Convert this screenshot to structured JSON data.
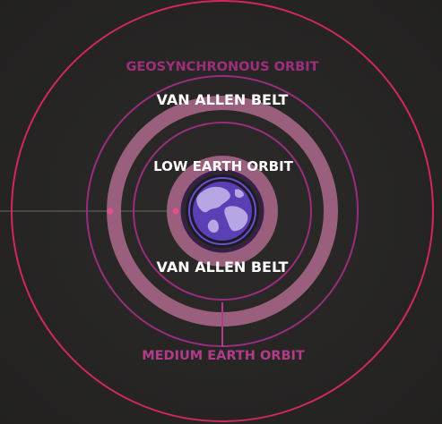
{
  "labels": {
    "geosynchronous": "GEOSYNCHRONOUS ORBIT",
    "van_allen_outer": "VAN ALLEN BELT",
    "low_earth": "LOW EARTH ORBIT",
    "van_allen_inner": "VAN ALLEN BELT",
    "medium_earth": "MEDIUM EARTH ORBIT"
  },
  "colors": {
    "background": "#272625",
    "geo_orbit": "#d1275f",
    "medium_orbit": "#9a2d7e",
    "belt": "#9a5f7c",
    "earth_ocean": "#5b3fb5",
    "earth_land": "#b6a7e4",
    "earth_ring": "#6a50c5",
    "marker": "#e0508f",
    "white_text": "#ffffff",
    "geo_text": "#9f2f7d",
    "medium_text": "#b03c8a"
  }
}
